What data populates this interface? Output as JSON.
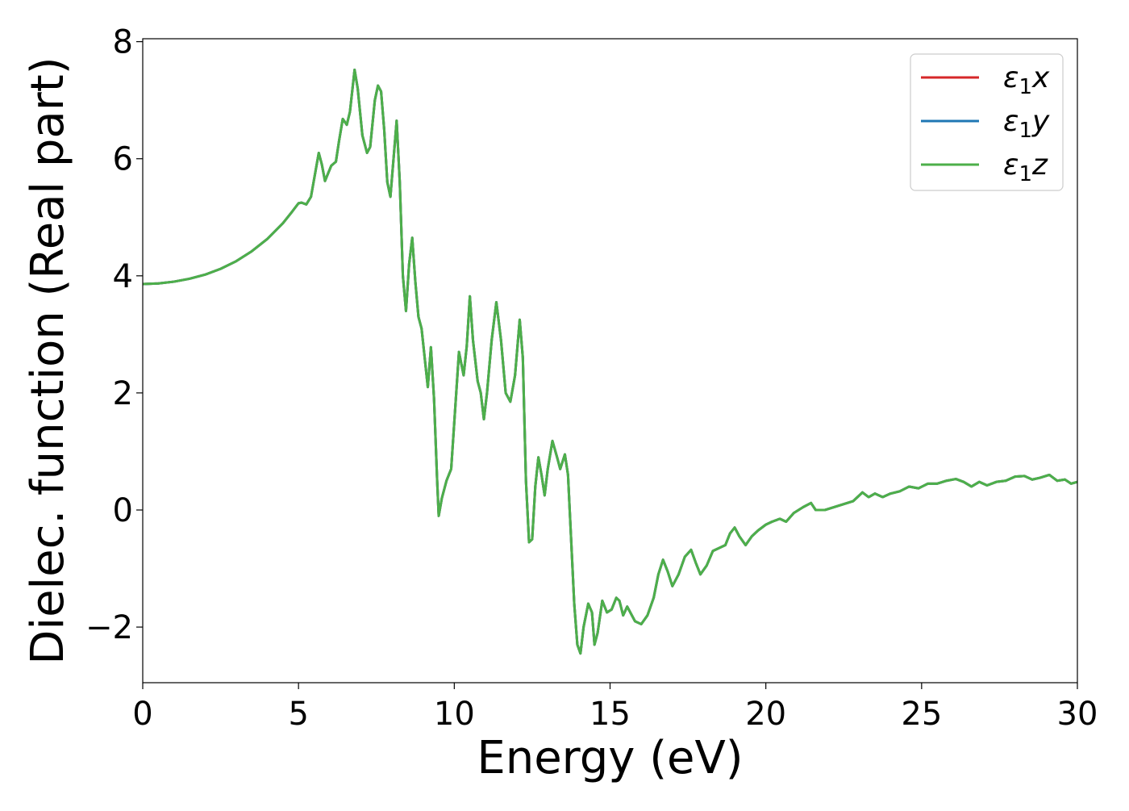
{
  "chart_data": {
    "type": "line",
    "title": "",
    "xlabel": "Energy (eV)",
    "ylabel": "Dielec. function (Real part)",
    "xlim": [
      0,
      30
    ],
    "ylim": [
      -2.95,
      8.05
    ],
    "xticks": [
      0,
      5,
      10,
      15,
      20,
      25,
      30
    ],
    "xtick_labels": [
      "0",
      "5",
      "10",
      "15",
      "20",
      "25",
      "30"
    ],
    "yticks": [
      -2,
      0,
      2,
      4,
      6,
      8
    ],
    "ytick_labels": [
      "−2",
      "0",
      "2",
      "4",
      "6",
      "8"
    ],
    "grid": false,
    "legend_position": "top-right",
    "series": [
      {
        "name": "ε₁x",
        "legend_main": "ε",
        "legend_sub": "1",
        "legend_comp": "x",
        "color": "#d62728",
        "points": "shared"
      },
      {
        "name": "ε₁y",
        "legend_main": "ε",
        "legend_sub": "1",
        "legend_comp": "y",
        "color": "#1f77b4",
        "points": "shared"
      },
      {
        "name": "ε₁z",
        "legend_main": "ε",
        "legend_sub": "1",
        "legend_comp": "z",
        "color": "#4daf4a",
        "points": "shared"
      }
    ],
    "points": [
      [
        0,
        3.86
      ],
      [
        0.5,
        3.87
      ],
      [
        1,
        3.9
      ],
      [
        1.5,
        3.95
      ],
      [
        2,
        4.02
      ],
      [
        2.5,
        4.12
      ],
      [
        3,
        4.25
      ],
      [
        3.5,
        4.42
      ],
      [
        4,
        4.63
      ],
      [
        4.5,
        4.9
      ],
      [
        4.8,
        5.1
      ],
      [
        5,
        5.24
      ],
      [
        5.1,
        5.25
      ],
      [
        5.25,
        5.22
      ],
      [
        5.4,
        5.35
      ],
      [
        5.55,
        5.8
      ],
      [
        5.65,
        6.1
      ],
      [
        5.75,
        5.9
      ],
      [
        5.85,
        5.62
      ],
      [
        5.95,
        5.75
      ],
      [
        6.05,
        5.88
      ],
      [
        6.2,
        5.95
      ],
      [
        6.3,
        6.3
      ],
      [
        6.42,
        6.68
      ],
      [
        6.55,
        6.58
      ],
      [
        6.65,
        6.8
      ],
      [
        6.8,
        7.52
      ],
      [
        6.9,
        7.2
      ],
      [
        7.05,
        6.4
      ],
      [
        7.2,
        6.1
      ],
      [
        7.3,
        6.2
      ],
      [
        7.45,
        7.0
      ],
      [
        7.55,
        7.25
      ],
      [
        7.65,
        7.15
      ],
      [
        7.75,
        6.5
      ],
      [
        7.85,
        5.6
      ],
      [
        7.95,
        5.35
      ],
      [
        8.05,
        6.0
      ],
      [
        8.15,
        6.65
      ],
      [
        8.25,
        5.6
      ],
      [
        8.35,
        4.0
      ],
      [
        8.45,
        3.4
      ],
      [
        8.55,
        4.2
      ],
      [
        8.65,
        4.65
      ],
      [
        8.75,
        3.9
      ],
      [
        8.85,
        3.3
      ],
      [
        8.95,
        3.1
      ],
      [
        9.05,
        2.6
      ],
      [
        9.15,
        2.1
      ],
      [
        9.25,
        2.78
      ],
      [
        9.35,
        1.9
      ],
      [
        9.45,
        0.5
      ],
      [
        9.5,
        -0.1
      ],
      [
        9.6,
        0.2
      ],
      [
        9.75,
        0.5
      ],
      [
        9.9,
        0.7
      ],
      [
        10.05,
        1.9
      ],
      [
        10.15,
        2.7
      ],
      [
        10.3,
        2.3
      ],
      [
        10.4,
        2.8
      ],
      [
        10.5,
        3.65
      ],
      [
        10.6,
        2.9
      ],
      [
        10.75,
        2.2
      ],
      [
        10.85,
        2.0
      ],
      [
        10.95,
        1.55
      ],
      [
        11.05,
        2.0
      ],
      [
        11.2,
        2.9
      ],
      [
        11.35,
        3.55
      ],
      [
        11.5,
        2.9
      ],
      [
        11.65,
        2.0
      ],
      [
        11.8,
        1.85
      ],
      [
        11.95,
        2.3
      ],
      [
        12.1,
        3.25
      ],
      [
        12.2,
        2.6
      ],
      [
        12.3,
        0.5
      ],
      [
        12.4,
        -0.55
      ],
      [
        12.5,
        -0.5
      ],
      [
        12.6,
        0.4
      ],
      [
        12.7,
        0.9
      ],
      [
        12.8,
        0.6
      ],
      [
        12.9,
        0.25
      ],
      [
        13.0,
        0.7
      ],
      [
        13.15,
        1.18
      ],
      [
        13.3,
        0.9
      ],
      [
        13.4,
        0.7
      ],
      [
        13.55,
        0.95
      ],
      [
        13.65,
        0.6
      ],
      [
        13.75,
        -0.5
      ],
      [
        13.85,
        -1.6
      ],
      [
        13.95,
        -2.3
      ],
      [
        14.05,
        -2.45
      ],
      [
        14.15,
        -2.0
      ],
      [
        14.3,
        -1.6
      ],
      [
        14.42,
        -1.75
      ],
      [
        14.5,
        -2.3
      ],
      [
        14.6,
        -2.1
      ],
      [
        14.75,
        -1.55
      ],
      [
        14.9,
        -1.75
      ],
      [
        15.05,
        -1.7
      ],
      [
        15.2,
        -1.5
      ],
      [
        15.3,
        -1.55
      ],
      [
        15.42,
        -1.8
      ],
      [
        15.55,
        -1.65
      ],
      [
        15.65,
        -1.75
      ],
      [
        15.8,
        -1.9
      ],
      [
        16.0,
        -1.95
      ],
      [
        16.2,
        -1.8
      ],
      [
        16.4,
        -1.5
      ],
      [
        16.55,
        -1.1
      ],
      [
        16.7,
        -0.85
      ],
      [
        16.85,
        -1.05
      ],
      [
        17.0,
        -1.3
      ],
      [
        17.2,
        -1.1
      ],
      [
        17.4,
        -0.8
      ],
      [
        17.6,
        -0.68
      ],
      [
        17.75,
        -0.9
      ],
      [
        17.9,
        -1.1
      ],
      [
        18.1,
        -0.95
      ],
      [
        18.3,
        -0.7
      ],
      [
        18.5,
        -0.65
      ],
      [
        18.7,
        -0.6
      ],
      [
        18.85,
        -0.4
      ],
      [
        19.0,
        -0.3
      ],
      [
        19.15,
        -0.45
      ],
      [
        19.35,
        -0.6
      ],
      [
        19.55,
        -0.45
      ],
      [
        19.75,
        -0.35
      ],
      [
        20.0,
        -0.25
      ],
      [
        20.2,
        -0.2
      ],
      [
        20.45,
        -0.15
      ],
      [
        20.65,
        -0.2
      ],
      [
        20.9,
        -0.05
      ],
      [
        21.2,
        0.05
      ],
      [
        21.45,
        0.12
      ],
      [
        21.6,
        0.0
      ],
      [
        21.9,
        0.0
      ],
      [
        22.2,
        0.05
      ],
      [
        22.5,
        0.1
      ],
      [
        22.8,
        0.15
      ],
      [
        23.1,
        0.3
      ],
      [
        23.3,
        0.22
      ],
      [
        23.5,
        0.28
      ],
      [
        23.75,
        0.22
      ],
      [
        24.0,
        0.28
      ],
      [
        24.3,
        0.32
      ],
      [
        24.6,
        0.4
      ],
      [
        24.9,
        0.37
      ],
      [
        25.2,
        0.45
      ],
      [
        25.5,
        0.45
      ],
      [
        25.8,
        0.5
      ],
      [
        26.1,
        0.53
      ],
      [
        26.35,
        0.48
      ],
      [
        26.6,
        0.4
      ],
      [
        26.85,
        0.48
      ],
      [
        27.1,
        0.42
      ],
      [
        27.4,
        0.48
      ],
      [
        27.7,
        0.5
      ],
      [
        28.0,
        0.57
      ],
      [
        28.3,
        0.58
      ],
      [
        28.55,
        0.52
      ],
      [
        28.8,
        0.55
      ],
      [
        29.1,
        0.6
      ],
      [
        29.35,
        0.5
      ],
      [
        29.6,
        0.52
      ],
      [
        29.8,
        0.45
      ],
      [
        30.0,
        0.48
      ]
    ]
  }
}
